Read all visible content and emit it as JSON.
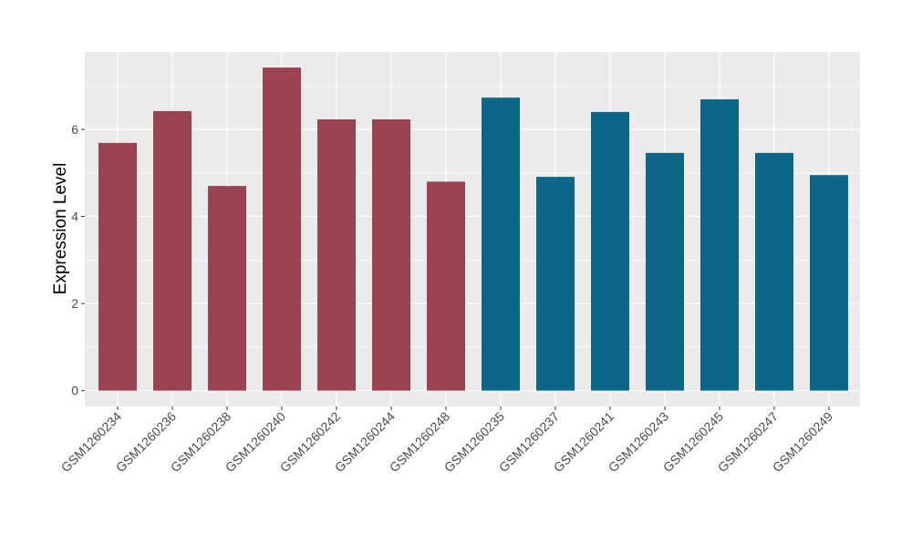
{
  "chart_data": {
    "type": "bar",
    "title": "",
    "xlabel": "",
    "ylabel": "Expression Level",
    "ylim": [
      0,
      7.8
    ],
    "yticks": [
      0,
      2,
      4,
      6
    ],
    "grid": true,
    "categories": [
      "GSM1260234",
      "GSM1260236",
      "GSM1260238",
      "GSM1260240",
      "GSM1260242",
      "GSM1260244",
      "GSM1260248",
      "GSM1260235",
      "GSM1260237",
      "GSM1260241",
      "GSM1260243",
      "GSM1260245",
      "GSM1260247",
      "GSM1260249"
    ],
    "values": [
      5.69,
      6.42,
      4.7,
      7.42,
      6.23,
      6.23,
      4.8,
      6.73,
      4.91,
      6.4,
      5.46,
      6.69,
      5.46,
      4.95
    ],
    "groups": [
      0,
      0,
      0,
      0,
      0,
      0,
      0,
      1,
      1,
      1,
      1,
      1,
      1,
      1
    ],
    "colors": [
      "#9b4251",
      "#0b6687"
    ],
    "panel_color": "#ebebeb",
    "grid_color": "#ffffff"
  }
}
